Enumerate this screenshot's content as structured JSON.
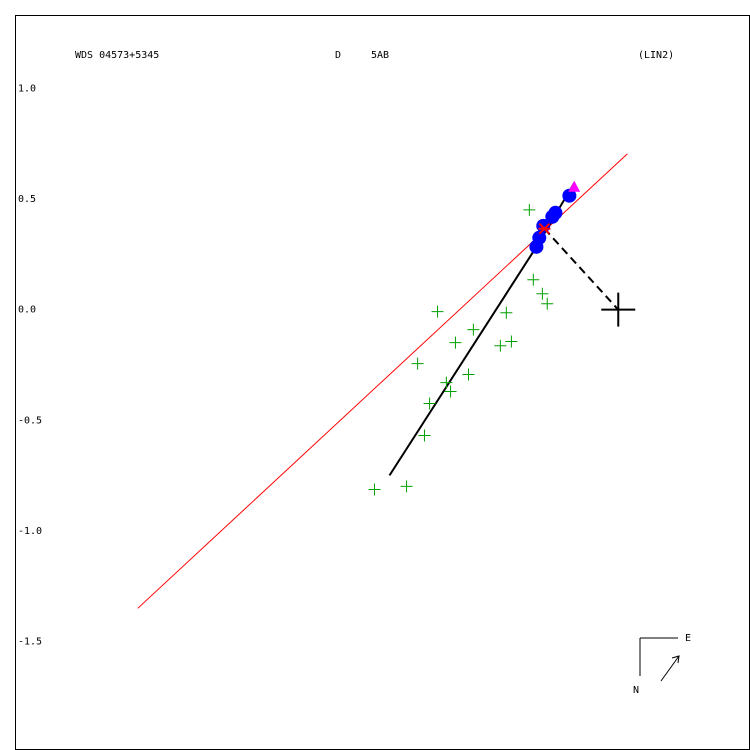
{
  "chart_data": {
    "type": "scatter",
    "title": "WDS 04573+5345",
    "annotations": [
      "D",
      "5AB",
      "(LIN2)"
    ],
    "compass": {
      "east": "E",
      "north": "N"
    },
    "xlim": [
      -2.727,
      0.591
    ],
    "ylim": [
      -1.986,
      1.332
    ],
    "yticks": [
      {
        "value": 1.0,
        "label": "1.0"
      },
      {
        "value": 0.5,
        "label": "0.5"
      },
      {
        "value": 0.0,
        "label": "0.0"
      },
      {
        "value": -0.5,
        "label": "-0.5"
      },
      {
        "value": -1.0,
        "label": "-1.0"
      },
      {
        "value": -1.5,
        "label": "-1.5"
      }
    ],
    "series": [
      {
        "marker": "line",
        "color": "#ff0000",
        "x": [
          -2.172,
          0.041
        ],
        "y": [
          -1.35,
          0.704
        ]
      },
      {
        "marker": "line",
        "color": "#000000",
        "x": [
          -1.034,
          -0.37,
          -0.199
        ],
        "y": [
          -0.749,
          0.284,
          0.573
        ]
      },
      {
        "marker": "plus",
        "color": "#00a000",
        "x": [
          -0.402,
          -0.384,
          -0.343,
          -0.321,
          -0.506,
          -0.817,
          -0.483,
          -0.736,
          -0.533,
          -0.655,
          -0.907,
          -0.677,
          -0.777,
          -0.758,
          -0.853,
          -0.876,
          -1.102,
          -0.957
        ],
        "y": [
          0.451,
          0.135,
          0.072,
          0.027,
          -0.014,
          -0.009,
          -0.144,
          -0.149,
          -0.163,
          -0.09,
          -0.244,
          -0.293,
          -0.33,
          -0.37,
          -0.424,
          -0.569,
          -0.813,
          -0.799
        ]
      },
      {
        "marker": "dot",
        "color": "#0000ff",
        "x": [
          -0.37,
          -0.357,
          -0.339,
          -0.298,
          -0.284,
          -0.221
        ],
        "y": [
          0.284,
          0.325,
          0.379,
          0.42,
          0.438,
          0.515
        ]
      },
      {
        "marker": "triangle",
        "color": "#ff00ff",
        "x": [
          -0.199
        ],
        "y": [
          0.551
        ]
      },
      {
        "marker": "dashed",
        "color": "#000000",
        "x": [
          -0.334,
          0.0
        ],
        "y": [
          0.366,
          0.0
        ]
      },
      {
        "marker": "star",
        "color": "#ff0000",
        "x": [
          -0.334
        ],
        "y": [
          0.366
        ]
      },
      {
        "marker": "bigplus",
        "color": "#000000",
        "x": [
          0.0
        ],
        "y": [
          0.0
        ]
      }
    ]
  }
}
